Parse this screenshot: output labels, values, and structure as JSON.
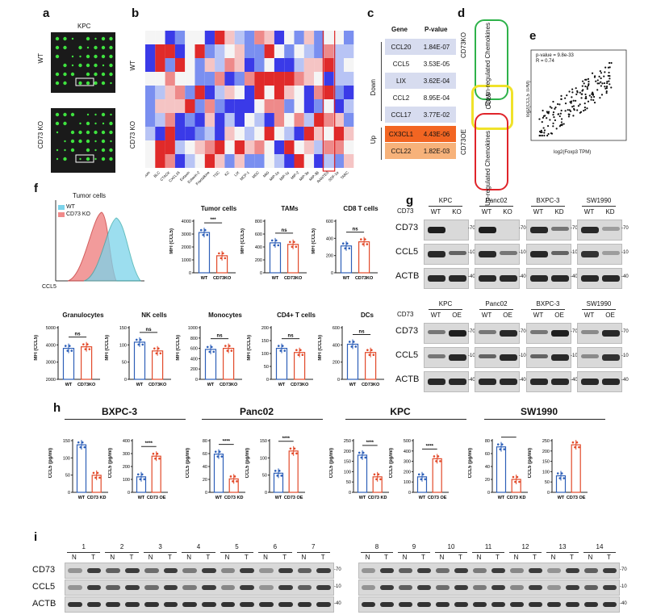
{
  "panels": {
    "a": {
      "label": "a",
      "title": "KPC",
      "rows": [
        "WT",
        "CD73 KO"
      ]
    },
    "b": {
      "label": "b",
      "rows": [
        "WT",
        "CD73 KO"
      ],
      "columns": [
        "Cilium",
        "BLC",
        "CTACK",
        "CXCL16",
        "Eotaxin",
        "Eotaxin-2",
        "Fractalkine",
        "TSC",
        "KC",
        "LIX",
        "MCP-1",
        "MDC",
        "MIG",
        "MIP-1α",
        "MIP-1γ",
        "MIP-2",
        "MIP-3α",
        "MIP-3β",
        "RANTES",
        "SDF-1α",
        "TARC"
      ]
    },
    "c": {
      "label": "c",
      "headers": [
        "Gene",
        "P-value"
      ],
      "rows": [
        {
          "gene": "CCL20",
          "p": "1.84E-07"
        },
        {
          "gene": "CCL5",
          "p": "3.53E-05"
        },
        {
          "gene": "LIX",
          "p": "3.62E-04"
        },
        {
          "gene": "CCL2",
          "p": "8.95E-04"
        },
        {
          "gene": "CCL17",
          "p": "3.77E-02"
        },
        {
          "gene": "CX3CL1",
          "p": "4.43E-06"
        },
        {
          "gene": "CCL22",
          "p": "1.82E-03"
        }
      ],
      "groups": [
        "Down",
        "Up"
      ]
    },
    "d": {
      "label": "d",
      "left_top": "CD73KO",
      "left_bottom": "CD73OE",
      "box_top": "Down-regulated Chemokines",
      "box_mid": "CCL5",
      "box_bottom": "Up-regulated Chemokines"
    },
    "e": {
      "label": "e",
      "stat1": "p-value = 9.8e-33",
      "stat2": "R = 0.74",
      "xlabel": "log2(Foxp3 TPM)",
      "ylabel": "log2(CCL5 TPM)"
    },
    "f": {
      "label": "f",
      "hist_title": "Tumor cells",
      "legend": [
        "WT",
        "CD73 KO"
      ],
      "hist_xlabel": "CCL5",
      "bars": [
        {
          "title": "Tumor cells",
          "sig": "***",
          "ylabel": "MFI (CCL5)",
          "cats": [
            "WT",
            "CD73KO"
          ],
          "ticks": [
            "0",
            "1000",
            "2000",
            "3000",
            "4000"
          ]
        },
        {
          "title": "TAMs",
          "sig": "ns",
          "ylabel": "MFI (CCL5)",
          "cats": [
            "WT",
            "CD73KO"
          ],
          "ticks": [
            "0",
            "200",
            "400",
            "600",
            "800"
          ]
        },
        {
          "title": "CD8 T cells",
          "sig": "ns",
          "ylabel": "MFI (CCL5)",
          "cats": [
            "WT",
            "CD73KO"
          ],
          "ticks": [
            "0",
            "200",
            "400",
            "600"
          ]
        },
        {
          "title": "Granulocytes",
          "sig": "ns",
          "ylabel": "MFI (CCL5)",
          "cats": [
            "WT",
            "CD73KO"
          ],
          "ticks": [
            "2000",
            "3000",
            "4000",
            "5000"
          ]
        },
        {
          "title": "NK cells",
          "sig": "ns",
          "ylabel": "MFI (CCL5)",
          "cats": [
            "WT",
            "CD73KO"
          ],
          "ticks": [
            "0",
            "50",
            "100",
            "150"
          ]
        },
        {
          "title": "Monocytes",
          "sig": "ns",
          "ylabel": "MFI (CCL5)",
          "cats": [
            "WT",
            "CD73KO"
          ],
          "ticks": [
            "0",
            "200",
            "400",
            "600",
            "800",
            "1000"
          ]
        },
        {
          "title": "CD4+ T cells",
          "sig": "ns",
          "ylabel": "MFI (CCL5)",
          "cats": [
            "WT",
            "CD73KO"
          ],
          "ticks": [
            "0",
            "50",
            "100",
            "150",
            "200"
          ]
        },
        {
          "title": "DCs",
          "sig": "ns",
          "ylabel": "MFI (CCL5)",
          "cats": [
            "WT",
            "CD73KO"
          ],
          "ticks": [
            "0",
            "200",
            "400",
            "600"
          ]
        }
      ]
    },
    "g": {
      "label": "g",
      "prefix": "CD73",
      "rows": [
        "CD73",
        "CCL5",
        "ACTB"
      ],
      "top": [
        {
          "name": "KPC",
          "lanes": [
            "WT",
            "KO"
          ]
        },
        {
          "name": "Panc02",
          "lanes": [
            "WT",
            "KO"
          ]
        },
        {
          "name": "BXPC-3",
          "lanes": [
            "WT",
            "KD"
          ]
        },
        {
          "name": "SW1990",
          "lanes": [
            "WT",
            "KD"
          ]
        }
      ],
      "bottom": [
        {
          "name": "KPC",
          "lanes": [
            "WT",
            "OE"
          ]
        },
        {
          "name": "Panc02",
          "lanes": [
            "WT",
            "OE"
          ]
        },
        {
          "name": "BXPC-3",
          "lanes": [
            "WT",
            "OE"
          ]
        },
        {
          "name": "SW1990",
          "lanes": [
            "WT",
            "OE"
          ]
        }
      ],
      "markers": [
        "-70",
        "-10",
        "-40"
      ]
    },
    "h": {
      "label": "h",
      "ylabel": "CCL5 (pg/ml)",
      "sig": "****",
      "groups": [
        {
          "name": "BXPC-3",
          "a": {
            "cats": [
              "WT",
              "CD73 KD"
            ],
            "ticks": [
              "0",
              "50",
              "100",
              "150"
            ]
          },
          "b": {
            "cats": [
              "WT",
              "CD73 OE"
            ],
            "ticks": [
              "0",
              "100",
              "200",
              "300",
              "400"
            ]
          }
        },
        {
          "name": "Panc02",
          "a": {
            "cats": [
              "WT",
              "CD73 KD"
            ],
            "ticks": [
              "0",
              "20",
              "40",
              "60",
              "80"
            ]
          },
          "b": {
            "cats": [
              "WT",
              "CD73 OE"
            ],
            "ticks": [
              "0",
              "50",
              "100",
              "150"
            ]
          }
        },
        {
          "name": "KPC",
          "a": {
            "cats": [
              "WT",
              "CD73 KD"
            ],
            "ticks": [
              "0",
              "50",
              "100",
              "150",
              "200",
              "250"
            ]
          },
          "b": {
            "cats": [
              "WT",
              "CD73 OE"
            ],
            "ticks": [
              "0",
              "100",
              "200",
              "300",
              "400",
              "500"
            ]
          }
        },
        {
          "name": "SW1990",
          "a": {
            "cats": [
              "WT",
              "CD73 KD"
            ],
            "ticks": [
              "0",
              "20",
              "40",
              "60",
              "80"
            ]
          },
          "b": {
            "cats": [
              "WT",
              "CD73 OE"
            ],
            "ticks": [
              "0",
              "50",
              "100",
              "150",
              "200",
              "250"
            ]
          }
        }
      ]
    },
    "i": {
      "label": "i",
      "rows": [
        "CD73",
        "CCL5",
        "ACTB"
      ],
      "left_nums": [
        "1",
        "2",
        "3",
        "4",
        "5",
        "6",
        "7"
      ],
      "right_nums": [
        "8",
        "9",
        "10",
        "11",
        "12",
        "13",
        "14"
      ],
      "nt": [
        "N",
        "T"
      ],
      "markers": [
        "-70",
        "-10",
        "-40"
      ]
    }
  }
}
